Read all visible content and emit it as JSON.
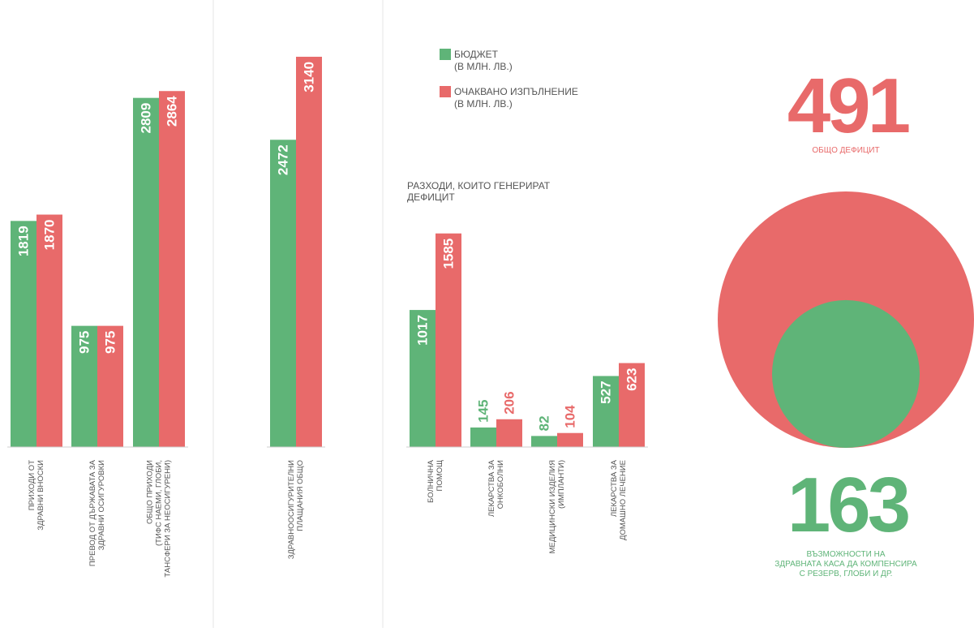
{
  "colors": {
    "budget": "#5fb478",
    "expected": "#e86a6a",
    "divider": "#e6e6e6",
    "text": "#555555"
  },
  "legend": {
    "budget": {
      "line1": "БЮДЖЕТ",
      "line2": "(В МЛН. ЛВ.)"
    },
    "expected": {
      "line1": "ОЧАКВАНО ИЗПЪЛНЕНИЕ",
      "line2": "(В МЛН. ЛВ.)"
    }
  },
  "chart_data": [
    {
      "type": "bar",
      "ylim": [
        0,
        3250
      ],
      "series": [
        {
          "name": "БЮДЖЕТ (В МЛН. ЛВ.)",
          "values": [
            1819,
            975,
            2809
          ]
        },
        {
          "name": "ОЧАКВАНО ИЗПЪЛНЕНИЕ (В МЛН. ЛВ.)",
          "values": [
            1870,
            975,
            2864
          ]
        }
      ],
      "categories": [
        [
          "ПРИХОДИ ОТ",
          "ЗДРАВНИ ВНОСКИ"
        ],
        [
          "ПРЕВОД ОТ ДЪРЖАВАТА ЗА",
          "ЗДРАВНИ ОСИГУРОВКИ"
        ],
        [
          "ОБЩО ПРИХОДИ",
          "(ТИФС НАЕМИ, ГЛОБИ,",
          "ТАНСФЕРИ ЗА НЕОСИГУРЕНИ)"
        ]
      ]
    },
    {
      "type": "bar",
      "ylim": [
        0,
        3250
      ],
      "series": [
        {
          "name": "БЮДЖЕТ (В МЛН. ЛВ.)",
          "values": [
            2472
          ]
        },
        {
          "name": "ОЧАКВАНО ИЗПЪЛНЕНИЕ (В МЛН. ЛВ.)",
          "values": [
            3140
          ]
        }
      ],
      "categories": [
        [
          "ЗДРАВНООСИГУРИТЕЛНИ",
          "ПЛАЩАНИЯ ОБЩО"
        ]
      ]
    },
    {
      "type": "bar",
      "title": [
        "РАЗХОДИ, КОИТО ГЕНЕРИРАТ",
        "ДЕФИЦИТ"
      ],
      "ylim": [
        0,
        1585
      ],
      "series": [
        {
          "name": "БЮДЖЕТ (В МЛН. ЛВ.)",
          "values": [
            1017,
            145,
            82,
            527
          ]
        },
        {
          "name": "ОЧАКВАНО ИЗПЪЛНЕНИЕ (В МЛН. ЛВ.)",
          "values": [
            1585,
            206,
            104,
            623
          ]
        }
      ],
      "categories": [
        [
          "БОЛНИЧНА",
          "ПОМОЩ"
        ],
        [
          "ЛЕКАРСТВА ЗА",
          "ОНКОБОЛНИ"
        ],
        [
          "МЕДИЦИНСКИ ИЗДЕЛИЯ",
          "(ИМПЛАНТИ)"
        ],
        [
          "ЛЕКАРСТВА ЗА",
          "ДОМАШНО ЛЕЧЕНИЕ"
        ]
      ]
    },
    {
      "type": "bubble",
      "items": [
        {
          "value": 491,
          "label": [
            "ОБЩО ДЕФИЦИТ"
          ],
          "color": "#e86a6a"
        },
        {
          "value": 163,
          "label": [
            "ВЪЗМОЖНОСТИ НА",
            "ЗДРАВНАТА КАСА ДА КОМПЕНСИРА",
            "С РЕЗЕРВ, ГЛОБИ И ДР."
          ],
          "color": "#5fb478"
        }
      ]
    }
  ]
}
